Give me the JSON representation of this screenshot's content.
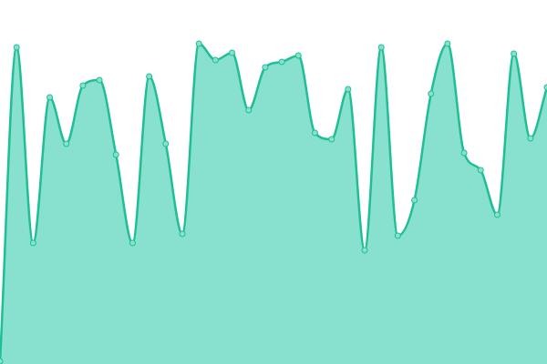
{
  "chart_data": {
    "type": "area",
    "categories": [
      null,
      null,
      null,
      null,
      null,
      null,
      null,
      null,
      null,
      null,
      null,
      null,
      null,
      null,
      null,
      null,
      null,
      null,
      null,
      null,
      null,
      null,
      null,
      null,
      null,
      null,
      null,
      null,
      null,
      null,
      null,
      null,
      null,
      null
    ],
    "values": [
      3,
      348,
      133,
      293,
      242,
      306,
      312,
      230,
      133,
      316,
      242,
      143,
      352,
      334,
      342,
      279,
      326,
      332,
      339,
      254,
      247,
      302,
      125,
      348,
      141,
      180,
      297,
      352,
      232,
      213,
      164,
      341,
      248,
      304
    ],
    "ylim": [
      0,
      400
    ],
    "color": "#1fbf95",
    "fill": "#88e0cf"
  }
}
